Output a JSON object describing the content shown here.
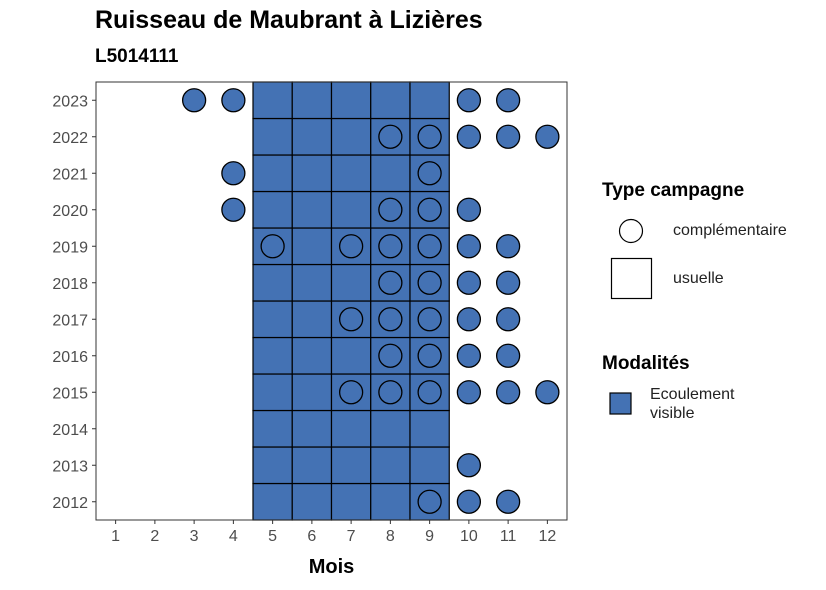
{
  "chart_data": {
    "type": "heatmap",
    "title": "Ruisseau de Maubrant à Lizières",
    "subtitle": "L5014111",
    "xlabel": "Mois",
    "ylabel": "",
    "x_ticks": [
      "1",
      "2",
      "3",
      "4",
      "5",
      "6",
      "7",
      "8",
      "9",
      "10",
      "11",
      "12"
    ],
    "y_ticks": [
      "2012",
      "2013",
      "2014",
      "2015",
      "2016",
      "2017",
      "2018",
      "2019",
      "2020",
      "2021",
      "2022",
      "2023"
    ],
    "xlim": [
      0.5,
      12.5
    ],
    "ylim": [
      2011.5,
      2023.5
    ],
    "fill_color": "#4472B4",
    "legend_type": {
      "title": "Type campagne",
      "items": [
        {
          "label": "complémentaire",
          "shape": "circle"
        },
        {
          "label": "usuelle",
          "shape": "square"
        }
      ]
    },
    "legend_modalites": {
      "title": "Modalités",
      "items": [
        {
          "label_lines": [
            "Ecoulement",
            "visible"
          ],
          "color": "#4472B4"
        }
      ]
    },
    "usuelle_months": [
      5,
      6,
      7,
      8,
      9
    ],
    "usuelle_years": [
      2012,
      2013,
      2014,
      2015,
      2016,
      2017,
      2018,
      2019,
      2020,
      2021,
      2022,
      2023
    ],
    "complementaire_points": [
      {
        "year": 2023,
        "months": [
          3,
          4,
          10,
          11
        ]
      },
      {
        "year": 2022,
        "months": [
          8,
          9,
          10,
          11,
          12
        ]
      },
      {
        "year": 2021,
        "months": [
          4,
          9
        ]
      },
      {
        "year": 2020,
        "months": [
          4,
          8,
          9,
          10
        ]
      },
      {
        "year": 2019,
        "months": [
          5,
          7,
          8,
          9,
          10,
          11
        ]
      },
      {
        "year": 2018,
        "months": [
          8,
          9,
          10,
          11
        ]
      },
      {
        "year": 2017,
        "months": [
          7,
          8,
          9,
          10,
          11
        ]
      },
      {
        "year": 2016,
        "months": [
          8,
          9,
          10,
          11
        ]
      },
      {
        "year": 2015,
        "months": [
          7,
          8,
          9,
          10,
          11,
          12
        ]
      },
      {
        "year": 2014,
        "months": []
      },
      {
        "year": 2013,
        "months": [
          10
        ]
      },
      {
        "year": 2012,
        "months": [
          9,
          10,
          11
        ]
      }
    ],
    "grid": false,
    "legend_position": "right"
  }
}
